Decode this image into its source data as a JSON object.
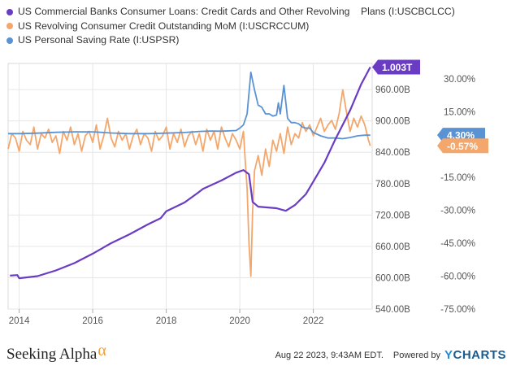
{
  "legend": [
    {
      "label": "US Commercial Banks Consumer Loans: Credit Cards and Other Revolving    Plans (I:USCBCLCC)",
      "color": "#6a3cc4"
    },
    {
      "label": "US Revolving Consumer Credit Outstanding MoM (I:USCRCCUM)",
      "color": "#f4a76c"
    },
    {
      "label": "US Personal Saving Rate (I:USPSR)",
      "color": "#5a93d4"
    }
  ],
  "footer": {
    "logo_text": "Seeking Alpha",
    "logo_alpha": "α",
    "timestamp": "Aug 22 2023, 9:43AM EDT.",
    "powered_by": "Powered by",
    "brand_y": "Y",
    "brand_rest": "CHARTS"
  },
  "chart_data": {
    "type": "line",
    "x_ticks": [
      "2014",
      "2016",
      "2018",
      "2020",
      "2022"
    ],
    "y_left_ticks": [
      "960.00B",
      "900.00B",
      "840.00B",
      "780.00B",
      "720.00B",
      "660.00B",
      "600.00B",
      "540.00B"
    ],
    "y_right_ticks": [
      "30.00%",
      "15.00%",
      "0.00%",
      "-15.00%",
      "-30.00%",
      "-45.00%",
      "-60.00%",
      "-75.00%"
    ],
    "y_left_range": [
      540,
      1010
    ],
    "y_right_range": [
      -75,
      37
    ],
    "badges": [
      {
        "label": "1.003T",
        "color": "#6a3cc4"
      },
      {
        "label": "4.30%",
        "color": "#5a93d4"
      },
      {
        "label": "-0.57%",
        "color": "#f4a76c"
      }
    ],
    "series": [
      {
        "name": "US Commercial Banks Consumer Loans: Credit Cards and Other Revolving Plans (I:USCBCLCC)",
        "axis": "left",
        "color": "#6a3cc4",
        "points": [
          [
            2013.75,
            604
          ],
          [
            2013.95,
            605
          ],
          [
            2014.0,
            599
          ],
          [
            2014.5,
            603
          ],
          [
            2015.0,
            614
          ],
          [
            2015.5,
            628
          ],
          [
            2016.0,
            646
          ],
          [
            2016.5,
            666
          ],
          [
            2017.0,
            683
          ],
          [
            2017.5,
            702
          ],
          [
            2017.85,
            714
          ],
          [
            2018.0,
            727
          ],
          [
            2018.5,
            744
          ],
          [
            2018.85,
            762
          ],
          [
            2019.0,
            770
          ],
          [
            2019.5,
            786
          ],
          [
            2019.9,
            801
          ],
          [
            2020.1,
            806
          ],
          [
            2020.25,
            798
          ],
          [
            2020.35,
            745
          ],
          [
            2020.5,
            736
          ],
          [
            2021.0,
            733
          ],
          [
            2021.25,
            728
          ],
          [
            2021.5,
            739
          ],
          [
            2021.8,
            760
          ],
          [
            2022.0,
            784
          ],
          [
            2022.3,
            820
          ],
          [
            2022.6,
            865
          ],
          [
            2023.0,
            920
          ],
          [
            2023.3,
            970
          ],
          [
            2023.55,
            1003
          ]
        ]
      },
      {
        "name": "US Revolving Consumer Credit Outstanding MoM (I:USCRCCUM)",
        "axis": "right",
        "color": "#f4a76c",
        "points": [
          [
            2013.7,
            -2
          ],
          [
            2013.8,
            5
          ],
          [
            2013.9,
            3
          ],
          [
            2014.0,
            -3
          ],
          [
            2014.1,
            6
          ],
          [
            2014.2,
            2
          ],
          [
            2014.3,
            0
          ],
          [
            2014.4,
            8
          ],
          [
            2014.5,
            -2
          ],
          [
            2014.6,
            5
          ],
          [
            2014.7,
            3
          ],
          [
            2014.8,
            7
          ],
          [
            2014.9,
            1
          ],
          [
            2015.0,
            4
          ],
          [
            2015.1,
            -4
          ],
          [
            2015.2,
            6
          ],
          [
            2015.3,
            2
          ],
          [
            2015.4,
            8
          ],
          [
            2015.5,
            0
          ],
          [
            2015.6,
            5
          ],
          [
            2015.7,
            -3
          ],
          [
            2015.8,
            4
          ],
          [
            2015.9,
            6
          ],
          [
            2016.0,
            1
          ],
          [
            2016.1,
            9
          ],
          [
            2016.2,
            -2
          ],
          [
            2016.3,
            4
          ],
          [
            2016.4,
            12
          ],
          [
            2016.5,
            3
          ],
          [
            2016.6,
            -1
          ],
          [
            2016.7,
            6
          ],
          [
            2016.8,
            2
          ],
          [
            2016.9,
            5
          ],
          [
            2017.0,
            -2
          ],
          [
            2017.1,
            4
          ],
          [
            2017.2,
            7
          ],
          [
            2017.3,
            0
          ],
          [
            2017.4,
            5
          ],
          [
            2017.5,
            3
          ],
          [
            2017.6,
            -3
          ],
          [
            2017.7,
            6
          ],
          [
            2017.8,
            2
          ],
          [
            2017.9,
            4
          ],
          [
            2018.0,
            8
          ],
          [
            2018.1,
            -2
          ],
          [
            2018.2,
            5
          ],
          [
            2018.3,
            1
          ],
          [
            2018.4,
            7
          ],
          [
            2018.5,
            -1
          ],
          [
            2018.6,
            4
          ],
          [
            2018.7,
            6
          ],
          [
            2018.8,
            0
          ],
          [
            2018.9,
            5
          ],
          [
            2019.0,
            -3
          ],
          [
            2019.1,
            7
          ],
          [
            2019.2,
            2
          ],
          [
            2019.3,
            6
          ],
          [
            2019.4,
            -2
          ],
          [
            2019.5,
            8
          ],
          [
            2019.6,
            3
          ],
          [
            2019.7,
            -1
          ],
          [
            2019.8,
            5
          ],
          [
            2019.9,
            2
          ],
          [
            2020.0,
            -2
          ],
          [
            2020.1,
            6
          ],
          [
            2020.15,
            -8
          ],
          [
            2020.2,
            -20
          ],
          [
            2020.25,
            -45
          ],
          [
            2020.3,
            -60
          ],
          [
            2020.35,
            -30
          ],
          [
            2020.4,
            -12
          ],
          [
            2020.5,
            -5
          ],
          [
            2020.6,
            -14
          ],
          [
            2020.7,
            -2
          ],
          [
            2020.8,
            -10
          ],
          [
            2020.9,
            2
          ],
          [
            2021.0,
            -3
          ],
          [
            2021.1,
            5
          ],
          [
            2021.2,
            -4
          ],
          [
            2021.3,
            8
          ],
          [
            2021.4,
            0
          ],
          [
            2021.5,
            5
          ],
          [
            2021.6,
            3
          ],
          [
            2021.7,
            10
          ],
          [
            2021.8,
            6
          ],
          [
            2021.9,
            9
          ],
          [
            2022.0,
            4
          ],
          [
            2022.1,
            8
          ],
          [
            2022.2,
            12
          ],
          [
            2022.3,
            6
          ],
          [
            2022.4,
            9
          ],
          [
            2022.5,
            11
          ],
          [
            2022.6,
            7
          ],
          [
            2022.7,
            14
          ],
          [
            2022.8,
            25
          ],
          [
            2022.9,
            15
          ],
          [
            2023.0,
            6
          ],
          [
            2023.1,
            12
          ],
          [
            2023.2,
            8
          ],
          [
            2023.3,
            13
          ],
          [
            2023.4,
            9
          ],
          [
            2023.5,
            2
          ],
          [
            2023.55,
            -0.57
          ]
        ]
      },
      {
        "name": "US Personal Saving Rate (I:USPSR)",
        "axis": "right",
        "color": "#5a93d4",
        "points": [
          [
            2013.7,
            5
          ],
          [
            2014.0,
            5
          ],
          [
            2014.5,
            5.2
          ],
          [
            2015.0,
            5.6
          ],
          [
            2015.5,
            5.8
          ],
          [
            2016.0,
            5.8
          ],
          [
            2016.5,
            5.3
          ],
          [
            2017.0,
            5.0
          ],
          [
            2017.5,
            5.0
          ],
          [
            2018.0,
            5.2
          ],
          [
            2018.5,
            5.5
          ],
          [
            2018.9,
            6
          ],
          [
            2019.2,
            6.2
          ],
          [
            2019.5,
            6.1
          ],
          [
            2019.9,
            6.4
          ],
          [
            2020.0,
            7.5
          ],
          [
            2020.1,
            9
          ],
          [
            2020.2,
            14
          ],
          [
            2020.3,
            33
          ],
          [
            2020.4,
            25
          ],
          [
            2020.5,
            18
          ],
          [
            2020.6,
            17
          ],
          [
            2020.7,
            14
          ],
          [
            2020.8,
            14
          ],
          [
            2020.9,
            13
          ],
          [
            2021.0,
            13.5
          ],
          [
            2021.05,
            19
          ],
          [
            2021.1,
            14
          ],
          [
            2021.2,
            27
          ],
          [
            2021.3,
            12
          ],
          [
            2021.4,
            10
          ],
          [
            2021.5,
            10
          ],
          [
            2021.6,
            9.5
          ],
          [
            2021.7,
            8
          ],
          [
            2021.8,
            7.5
          ],
          [
            2021.9,
            7.5
          ],
          [
            2022.0,
            5.5
          ],
          [
            2022.2,
            4
          ],
          [
            2022.4,
            3
          ],
          [
            2022.6,
            3
          ],
          [
            2022.8,
            2.7
          ],
          [
            2023.0,
            3.2
          ],
          [
            2023.2,
            4.0
          ],
          [
            2023.4,
            4.3
          ],
          [
            2023.55,
            4.3
          ]
        ]
      }
    ],
    "xlim": [
      2013.7,
      2023.6
    ],
    "grid": true
  }
}
